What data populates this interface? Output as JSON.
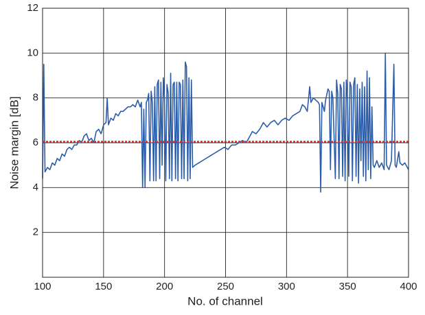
{
  "chart_data": {
    "type": "line",
    "x_label": "No. of channel",
    "y_label": "Noise margin [dB]",
    "xlim": [
      100,
      400
    ],
    "xticks": [
      100,
      150,
      200,
      250,
      300,
      350,
      400
    ],
    "ylim": [
      0,
      12
    ],
    "yticks": [
      2,
      4,
      6,
      8,
      10,
      12
    ],
    "grid": true,
    "threshold": {
      "value": 6.05,
      "color": "#e8322e"
    },
    "x": [
      100,
      101,
      102,
      104,
      106,
      108,
      110,
      112,
      114,
      116,
      118,
      120,
      122,
      124,
      126,
      128,
      130,
      132,
      134,
      136,
      138,
      140,
      142,
      144,
      146,
      148,
      150,
      152,
      153,
      154,
      156,
      158,
      160,
      162,
      164,
      166,
      168,
      170,
      172,
      174,
      176,
      178,
      180,
      181,
      182,
      183,
      184,
      185,
      186,
      187,
      188,
      189,
      190,
      191,
      192,
      193,
      194,
      195,
      196,
      197,
      198,
      199,
      200,
      201,
      202,
      203,
      204,
      205,
      206,
      207,
      208,
      209,
      210,
      211,
      212,
      213,
      214,
      215,
      216,
      217,
      218,
      219,
      220,
      221,
      222,
      223,
      225,
      228,
      231,
      234,
      237,
      240,
      243,
      246,
      249,
      252,
      255,
      258,
      261,
      264,
      267,
      270,
      272,
      275,
      278,
      281,
      284,
      287,
      290,
      293,
      296,
      299,
      302,
      305,
      308,
      311,
      313,
      315,
      317,
      319,
      320,
      322,
      324,
      326,
      327,
      328,
      329,
      331,
      332,
      334,
      335,
      336,
      337,
      338,
      340,
      341,
      342,
      343,
      344,
      345,
      346,
      347,
      348,
      349,
      350,
      351,
      352,
      353,
      354,
      355,
      356,
      357,
      358,
      359,
      360,
      361,
      362,
      363,
      364,
      365,
      366,
      367,
      368,
      369,
      370,
      371,
      372,
      374,
      376,
      378,
      380,
      381,
      382,
      384,
      386,
      388,
      389,
      390,
      392,
      393,
      395,
      397,
      399,
      400
    ],
    "series": [
      {
        "color": "#2a5caa",
        "values": [
          4.4,
          9.5,
          4.7,
          4.9,
          4.8,
          5.1,
          5.0,
          5.3,
          5.2,
          5.5,
          5.4,
          5.7,
          5.8,
          5.7,
          5.9,
          5.9,
          6.1,
          6.0,
          6.3,
          6.4,
          6.1,
          6.2,
          6.0,
          6.5,
          6.6,
          6.4,
          6.8,
          6.9,
          8.0,
          6.8,
          7.1,
          7.0,
          7.3,
          7.2,
          7.4,
          7.4,
          7.5,
          7.6,
          7.6,
          7.7,
          7.6,
          7.9,
          7.6,
          7.8,
          4.0,
          7.5,
          4.0,
          7.8,
          7.9,
          8.2,
          4.3,
          8.3,
          7.8,
          4.3,
          8.5,
          4.3,
          8.6,
          8.8,
          4.4,
          8.7,
          5.0,
          8.9,
          7.9,
          4.3,
          8.6,
          8.2,
          4.4,
          9.1,
          4.3,
          8.6,
          8.7,
          4.4,
          8.7,
          4.3,
          8.7,
          8.6,
          4.4,
          8.8,
          4.4,
          9.6,
          9.4,
          4.3,
          8.9,
          4.4,
          8.8,
          4.9,
          5.0,
          5.1,
          5.2,
          5.3,
          5.4,
          5.5,
          5.6,
          5.7,
          5.8,
          5.7,
          5.9,
          5.9,
          6.0,
          6.1,
          6.0,
          6.3,
          6.5,
          6.4,
          6.6,
          6.9,
          6.7,
          6.9,
          7.0,
          6.8,
          7.0,
          7.1,
          7.0,
          7.2,
          7.3,
          7.4,
          7.7,
          7.6,
          7.4,
          8.5,
          7.8,
          8.0,
          7.9,
          7.8,
          7.7,
          3.8,
          7.8,
          7.4,
          7.9,
          8.4,
          8.3,
          4.8,
          8.3,
          8.0,
          4.4,
          8.8,
          8.2,
          4.4,
          8.6,
          8.4,
          4.5,
          8.7,
          4.3,
          8.8,
          7.9,
          4.5,
          8.7,
          8.5,
          4.3,
          8.6,
          8.9,
          4.5,
          8.6,
          4.2,
          8.4,
          5.2,
          8.7,
          4.5,
          8.5,
          4.3,
          9.2,
          4.8,
          8.9,
          4.4,
          7.6,
          5.0,
          4.9,
          5.2,
          4.9,
          5.1,
          4.8,
          10,
          5.0,
          4.8,
          5.2,
          9.5,
          5.0,
          4.9,
          5.6,
          5.1,
          5.0,
          5.1,
          4.9,
          4.8
        ]
      }
    ]
  }
}
